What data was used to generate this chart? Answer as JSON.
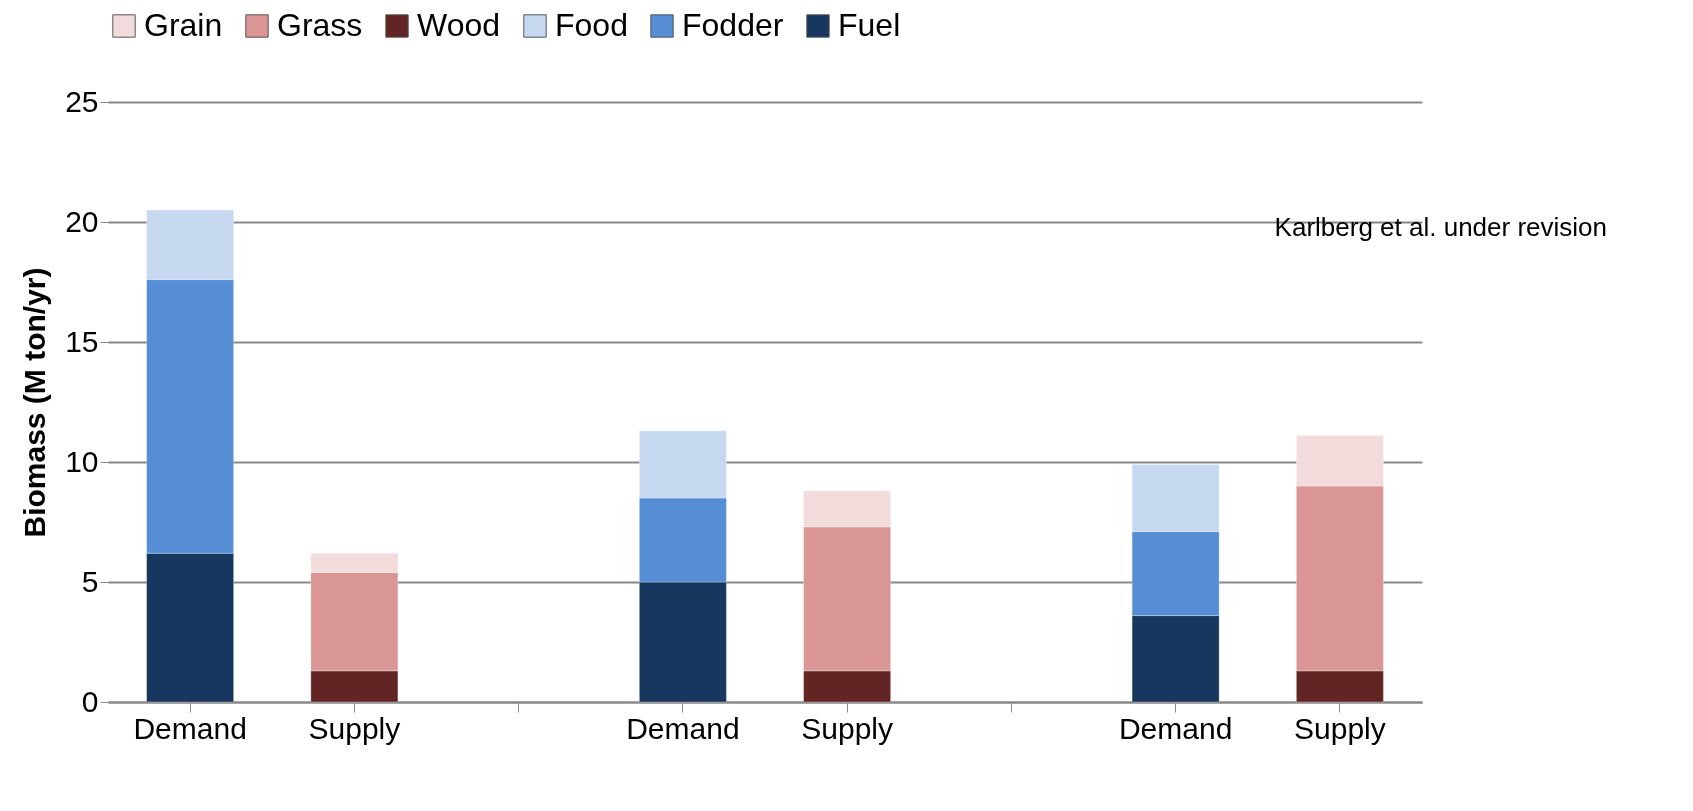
{
  "chart_data": {
    "type": "bar",
    "stacked": true,
    "categories": [
      "Demand",
      "Supply",
      null,
      "Demand",
      "Supply",
      null,
      "Demand",
      "Supply"
    ],
    "series": [
      {
        "name": "Fuel",
        "color": "#17375e",
        "values": [
          6.2,
          null,
          null,
          5.0,
          null,
          null,
          3.6,
          null
        ]
      },
      {
        "name": "Fodder",
        "color": "#558ed5",
        "values": [
          11.4,
          null,
          null,
          3.5,
          null,
          null,
          3.5,
          null
        ]
      },
      {
        "name": "Food",
        "color": "#c6d9f1",
        "values": [
          2.9,
          null,
          null,
          2.8,
          null,
          null,
          2.8,
          null
        ]
      },
      {
        "name": "Wood",
        "color": "#632523",
        "values": [
          null,
          1.3,
          null,
          null,
          1.3,
          null,
          null,
          1.3
        ]
      },
      {
        "name": "Grass",
        "color": "#d99694",
        "values": [
          null,
          4.1,
          null,
          null,
          6.0,
          null,
          null,
          7.7
        ]
      },
      {
        "name": "Grain",
        "color": "#f2dcdb",
        "values": [
          null,
          0.8,
          null,
          null,
          1.5,
          null,
          null,
          2.1
        ]
      }
    ],
    "ylabel": "Biomass (M ton/yr)",
    "ylim": [
      0,
      25
    ],
    "yticks": [
      0,
      5,
      10,
      15,
      20,
      25
    ],
    "grid": "y",
    "legend": "top",
    "annotations": [
      "Karlberg et al. under revision"
    ]
  }
}
